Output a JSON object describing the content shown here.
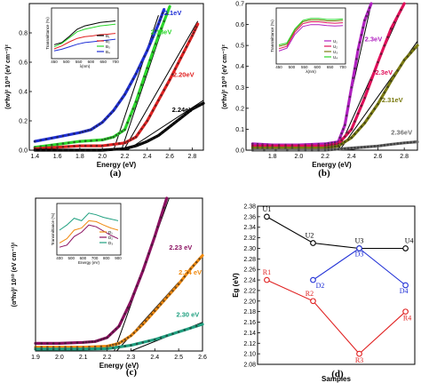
{
  "chart_data": [
    {
      "id": "a",
      "type": "line",
      "panel_label": "(a)",
      "xlabel": "Energy (eV)",
      "ylabel": "(α*hν)² 10¹⁰ (eV cm⁻¹)²",
      "xlim": [
        1.35,
        2.9
      ],
      "ylim": [
        0,
        1.0
      ],
      "xticks": [
        "1.4",
        "1.6",
        "1.8",
        "2.0",
        "2.2",
        "2.4",
        "2.6",
        "2.8"
      ],
      "yticks": [
        "0.0",
        "0.2",
        "0.4",
        "0.6",
        "0.8"
      ],
      "series": [
        {
          "color": "#1f2fd6",
          "x": [
            1.4,
            1.6,
            1.8,
            1.9,
            2.0,
            2.1,
            2.2,
            2.3,
            2.4,
            2.5,
            2.55
          ],
          "y": [
            0.06,
            0.09,
            0.12,
            0.14,
            0.19,
            0.27,
            0.38,
            0.52,
            0.68,
            0.86,
            0.96
          ]
        },
        {
          "color": "#2bd62b",
          "x": [
            1.4,
            1.6,
            1.8,
            2.0,
            2.1,
            2.2,
            2.3,
            2.4,
            2.5,
            2.6
          ],
          "y": [
            0.02,
            0.04,
            0.06,
            0.07,
            0.09,
            0.14,
            0.33,
            0.56,
            0.78,
            0.98
          ]
        },
        {
          "color": "#e02020",
          "x": [
            1.4,
            1.6,
            1.8,
            2.0,
            2.2,
            2.3,
            2.4,
            2.5,
            2.6,
            2.7,
            2.8,
            2.85
          ],
          "y": [
            0.01,
            0.02,
            0.03,
            0.03,
            0.05,
            0.09,
            0.2,
            0.34,
            0.48,
            0.63,
            0.78,
            0.86
          ]
        },
        {
          "color": "#000000",
          "x": [
            1.4,
            1.6,
            1.8,
            2.0,
            2.2,
            2.3,
            2.4,
            2.5,
            2.6,
            2.7,
            2.8,
            2.9
          ],
          "y": [
            0.0,
            0.0,
            0.0,
            0.0,
            0.01,
            0.03,
            0.06,
            0.1,
            0.16,
            0.22,
            0.28,
            0.32
          ]
        }
      ],
      "fit_lines": [
        {
          "x": [
            2.1,
            2.5
          ],
          "y": [
            0.0,
            0.92
          ]
        },
        {
          "x": [
            2.17,
            2.6
          ],
          "y": [
            0.0,
            0.98
          ]
        },
        {
          "x": [
            2.19,
            2.85
          ],
          "y": [
            0.0,
            0.88
          ]
        },
        {
          "x": [
            2.22,
            2.9
          ],
          "y": [
            0.0,
            0.34
          ]
        }
      ],
      "annotations": [
        {
          "text": "2.1eV",
          "color": "#1f2fd6",
          "x": 2.55,
          "y": 0.92
        },
        {
          "text": "2.18eV",
          "color": "#2bd62b",
          "x": 2.43,
          "y": 0.79
        },
        {
          "text": "2.20eV",
          "color": "#e02020",
          "x": 2.63,
          "y": 0.5
        },
        {
          "text": "2.24eV",
          "color": "#000000",
          "x": 2.62,
          "y": 0.26
        }
      ],
      "inset": {
        "ylabel": "Transmittance (%)",
        "xlabel": "λ(nm)",
        "xticks": [
          "450",
          "500",
          "550",
          "600",
          "650",
          "700"
        ],
        "legend": [
          "B₁",
          "B₂",
          "B₃",
          "B₄"
        ],
        "legend_colors": [
          "#000000",
          "#e02020",
          "#2bd62b",
          "#1f2fd6"
        ],
        "series": [
          {
            "color": "#000000",
            "y": [
              0.25,
              0.3,
              0.45,
              0.62,
              0.7,
              0.74,
              0.78,
              0.8,
              0.82
            ]
          },
          {
            "color": "#e02020",
            "y": [
              0.15,
              0.22,
              0.32,
              0.4,
              0.44,
              0.46,
              0.49,
              0.5,
              0.52
            ]
          },
          {
            "color": "#2bd62b",
            "y": [
              0.2,
              0.28,
              0.42,
              0.56,
              0.62,
              0.66,
              0.7,
              0.72,
              0.74
            ]
          },
          {
            "color": "#1f2fd6",
            "y": [
              0.1,
              0.14,
              0.2,
              0.26,
              0.3,
              0.32,
              0.34,
              0.36,
              0.38
            ]
          }
        ]
      }
    },
    {
      "id": "b",
      "type": "line",
      "panel_label": "(b)",
      "xlabel": "Energy (eV)",
      "ylabel": "(α*hν)² 10¹⁰ (eV cm⁻¹)²",
      "xlim": [
        1.6,
        2.9
      ],
      "ylim": [
        0,
        0.7
      ],
      "xticks": [
        "1.8",
        "2.0",
        "2.2",
        "2.4",
        "2.6",
        "2.8"
      ],
      "yticks": [
        "0.0",
        "0.1",
        "0.2",
        "0.3",
        "0.4",
        "0.5",
        "0.6",
        "0.7"
      ],
      "series": [
        {
          "color": "#b020c0",
          "x": [
            1.65,
            1.8,
            2.0,
            2.2,
            2.3,
            2.35,
            2.4,
            2.45,
            2.5,
            2.55
          ],
          "y": [
            0.03,
            0.025,
            0.025,
            0.03,
            0.04,
            0.12,
            0.3,
            0.48,
            0.62,
            0.7
          ]
        },
        {
          "color": "#e0105a",
          "x": [
            1.65,
            1.8,
            2.0,
            2.2,
            2.3,
            2.4,
            2.5,
            2.6,
            2.7,
            2.8
          ],
          "y": [
            0.02,
            0.02,
            0.02,
            0.02,
            0.03,
            0.1,
            0.25,
            0.42,
            0.58,
            0.7
          ]
        },
        {
          "color": "#7a7a10",
          "x": [
            1.65,
            1.8,
            2.0,
            2.2,
            2.3,
            2.4,
            2.5,
            2.6,
            2.7,
            2.8,
            2.9
          ],
          "y": [
            0.01,
            0.01,
            0.01,
            0.01,
            0.02,
            0.06,
            0.13,
            0.22,
            0.33,
            0.43,
            0.5
          ]
        },
        {
          "color": "#707070",
          "x": [
            1.65,
            2.0,
            2.2,
            2.3,
            2.4,
            2.5,
            2.6,
            2.7,
            2.8,
            2.9
          ],
          "y": [
            0.0,
            0.0,
            0.0,
            0.005,
            0.01,
            0.015,
            0.02,
            0.028,
            0.035,
            0.04
          ]
        }
      ],
      "fit_lines": [
        {
          "x": [
            2.3,
            2.55
          ],
          "y": [
            0.0,
            0.7
          ]
        },
        {
          "x": [
            2.3,
            2.8
          ],
          "y": [
            0.0,
            0.7
          ]
        },
        {
          "x": [
            2.31,
            2.9
          ],
          "y": [
            0.0,
            0.52
          ]
        },
        {
          "x": [
            2.36,
            2.9
          ],
          "y": [
            0.0,
            0.045
          ]
        }
      ],
      "annotations": [
        {
          "text": "2.3eV",
          "color": "#b020c0",
          "x": 2.5,
          "y": 0.52
        },
        {
          "text": "2.3eV",
          "color": "#e0105a",
          "x": 2.58,
          "y": 0.36
        },
        {
          "text": "2.31eV",
          "color": "#7a7a10",
          "x": 2.63,
          "y": 0.23
        },
        {
          "text": "2.36eV",
          "color": "#707070",
          "x": 2.7,
          "y": 0.075
        }
      ],
      "inset": {
        "ylabel": "Transmittance (%)",
        "xlabel": "λ(nm)",
        "xticks": [
          "450",
          "500",
          "550",
          "600",
          "650",
          "700"
        ],
        "legend": [
          "U₁",
          "U₂",
          "U₃",
          "U₄"
        ],
        "legend_colors": [
          "#b020c0",
          "#e0105a",
          "#7a7a10",
          "#2bd62b"
        ],
        "series": [
          {
            "color": "#b020c0",
            "y": [
              0.2,
              0.26,
              0.55,
              0.72,
              0.76,
              0.76,
              0.74,
              0.73,
              0.74
            ]
          },
          {
            "color": "#e0105a",
            "y": [
              0.25,
              0.3,
              0.6,
              0.78,
              0.82,
              0.82,
              0.8,
              0.79,
              0.8
            ]
          },
          {
            "color": "#7a7a10",
            "y": [
              0.3,
              0.34,
              0.64,
              0.82,
              0.86,
              0.86,
              0.84,
              0.84,
              0.85
            ]
          },
          {
            "color": "#2bd62b",
            "y": [
              0.33,
              0.37,
              0.67,
              0.85,
              0.89,
              0.89,
              0.87,
              0.87,
              0.88
            ]
          }
        ]
      }
    },
    {
      "id": "c",
      "type": "line",
      "panel_label": "(c)",
      "xlabel": "Energy (eV)",
      "ylabel": "(α*hν)² 10¹⁰ (eV cm⁻¹)²",
      "xlim": [
        1.9,
        2.6
      ],
      "ylim": [
        0,
        0.8
      ],
      "xticks": [
        "1.9",
        "2.0",
        "2.1",
        "2.2",
        "2.3",
        "2.4",
        "2.5",
        "2.6"
      ],
      "yticks": [],
      "series": [
        {
          "color": "#8a1060",
          "x": [
            1.9,
            2.0,
            2.1,
            2.15,
            2.2,
            2.25,
            2.3,
            2.35,
            2.4,
            2.45
          ],
          "y": [
            0.04,
            0.04,
            0.045,
            0.05,
            0.07,
            0.13,
            0.26,
            0.42,
            0.6,
            0.8
          ]
        },
        {
          "color": "#f08a10",
          "x": [
            1.9,
            2.0,
            2.1,
            2.2,
            2.25,
            2.3,
            2.35,
            2.4,
            2.45,
            2.5,
            2.55,
            2.6
          ],
          "y": [
            0.02,
            0.02,
            0.02,
            0.025,
            0.04,
            0.08,
            0.14,
            0.21,
            0.28,
            0.35,
            0.43,
            0.5
          ]
        },
        {
          "color": "#20a080",
          "x": [
            1.9,
            2.0,
            2.1,
            2.2,
            2.3,
            2.4,
            2.5,
            2.6
          ],
          "y": [
            0.01,
            0.01,
            0.01,
            0.012,
            0.03,
            0.06,
            0.1,
            0.14
          ]
        }
      ],
      "fit_lines": [
        {
          "x": [
            2.23,
            2.46
          ],
          "y": [
            0.0,
            0.8
          ]
        },
        {
          "x": [
            2.24,
            2.5
          ],
          "y": [
            0.0,
            0.36
          ]
        },
        {
          "x": [
            2.3,
            2.6
          ],
          "y": [
            0.0,
            0.15
          ]
        }
      ],
      "annotations": [
        {
          "text": "2.23 eV",
          "color": "#8a1060",
          "x": 2.46,
          "y": 0.53
        },
        {
          "text": "2.24 eV",
          "color": "#f08a10",
          "x": 2.5,
          "y": 0.4
        },
        {
          "text": "2.30 eV",
          "color": "#20a080",
          "x": 2.49,
          "y": 0.18
        }
      ],
      "inset": {
        "ylabel": "Transmittance (%)",
        "xlabel": "Energy (eV)",
        "xticks": [
          "400",
          "500",
          "600",
          "700",
          "800",
          "900"
        ],
        "legend": [
          "D₁",
          "D₂",
          "D₃"
        ],
        "legend_colors": [
          "#f08a10",
          "#8a1060",
          "#20a080"
        ],
        "series": [
          {
            "color": "#8a1060",
            "y": [
              0.1,
              0.15,
              0.35,
              0.45,
              0.62,
              0.58,
              0.48,
              0.38,
              0.3
            ]
          },
          {
            "color": "#f08a10",
            "y": [
              0.2,
              0.3,
              0.5,
              0.55,
              0.72,
              0.7,
              0.62,
              0.55,
              0.5
            ]
          },
          {
            "color": "#20a080",
            "y": [
              0.5,
              0.62,
              0.78,
              0.72,
              0.9,
              0.86,
              0.8,
              0.76,
              0.72
            ]
          }
        ]
      }
    },
    {
      "id": "d",
      "type": "line",
      "panel_label": "(d)",
      "xlabel": "Samples",
      "ylabel": "Eg (eV)",
      "xlim": [
        0.8,
        4.2
      ],
      "ylim": [
        2.08,
        2.38
      ],
      "yticks": [
        "2.08",
        "2.10",
        "2.12",
        "2.14",
        "2.16",
        "2.18",
        "2.20",
        "2.22",
        "2.24",
        "2.26",
        "2.28",
        "2.30",
        "2.32",
        "2.34",
        "2.36",
        "2.38"
      ],
      "series": [
        {
          "color": "#000000",
          "labels": [
            "U1",
            "U2",
            "U3",
            "U4"
          ],
          "x": [
            1,
            2,
            3,
            4
          ],
          "y": [
            2.36,
            2.31,
            2.3,
            2.3
          ]
        },
        {
          "color": "#1f2fd6",
          "labels": [
            "D2",
            "D3",
            "D4"
          ],
          "x": [
            2,
            3,
            4
          ],
          "y": [
            2.24,
            2.3,
            2.23
          ]
        },
        {
          "color": "#e02020",
          "labels": [
            "R1",
            "R2",
            "R3",
            "R4"
          ],
          "x": [
            1,
            2,
            3,
            4
          ],
          "y": [
            2.24,
            2.2,
            2.1,
            2.18
          ]
        }
      ]
    }
  ]
}
